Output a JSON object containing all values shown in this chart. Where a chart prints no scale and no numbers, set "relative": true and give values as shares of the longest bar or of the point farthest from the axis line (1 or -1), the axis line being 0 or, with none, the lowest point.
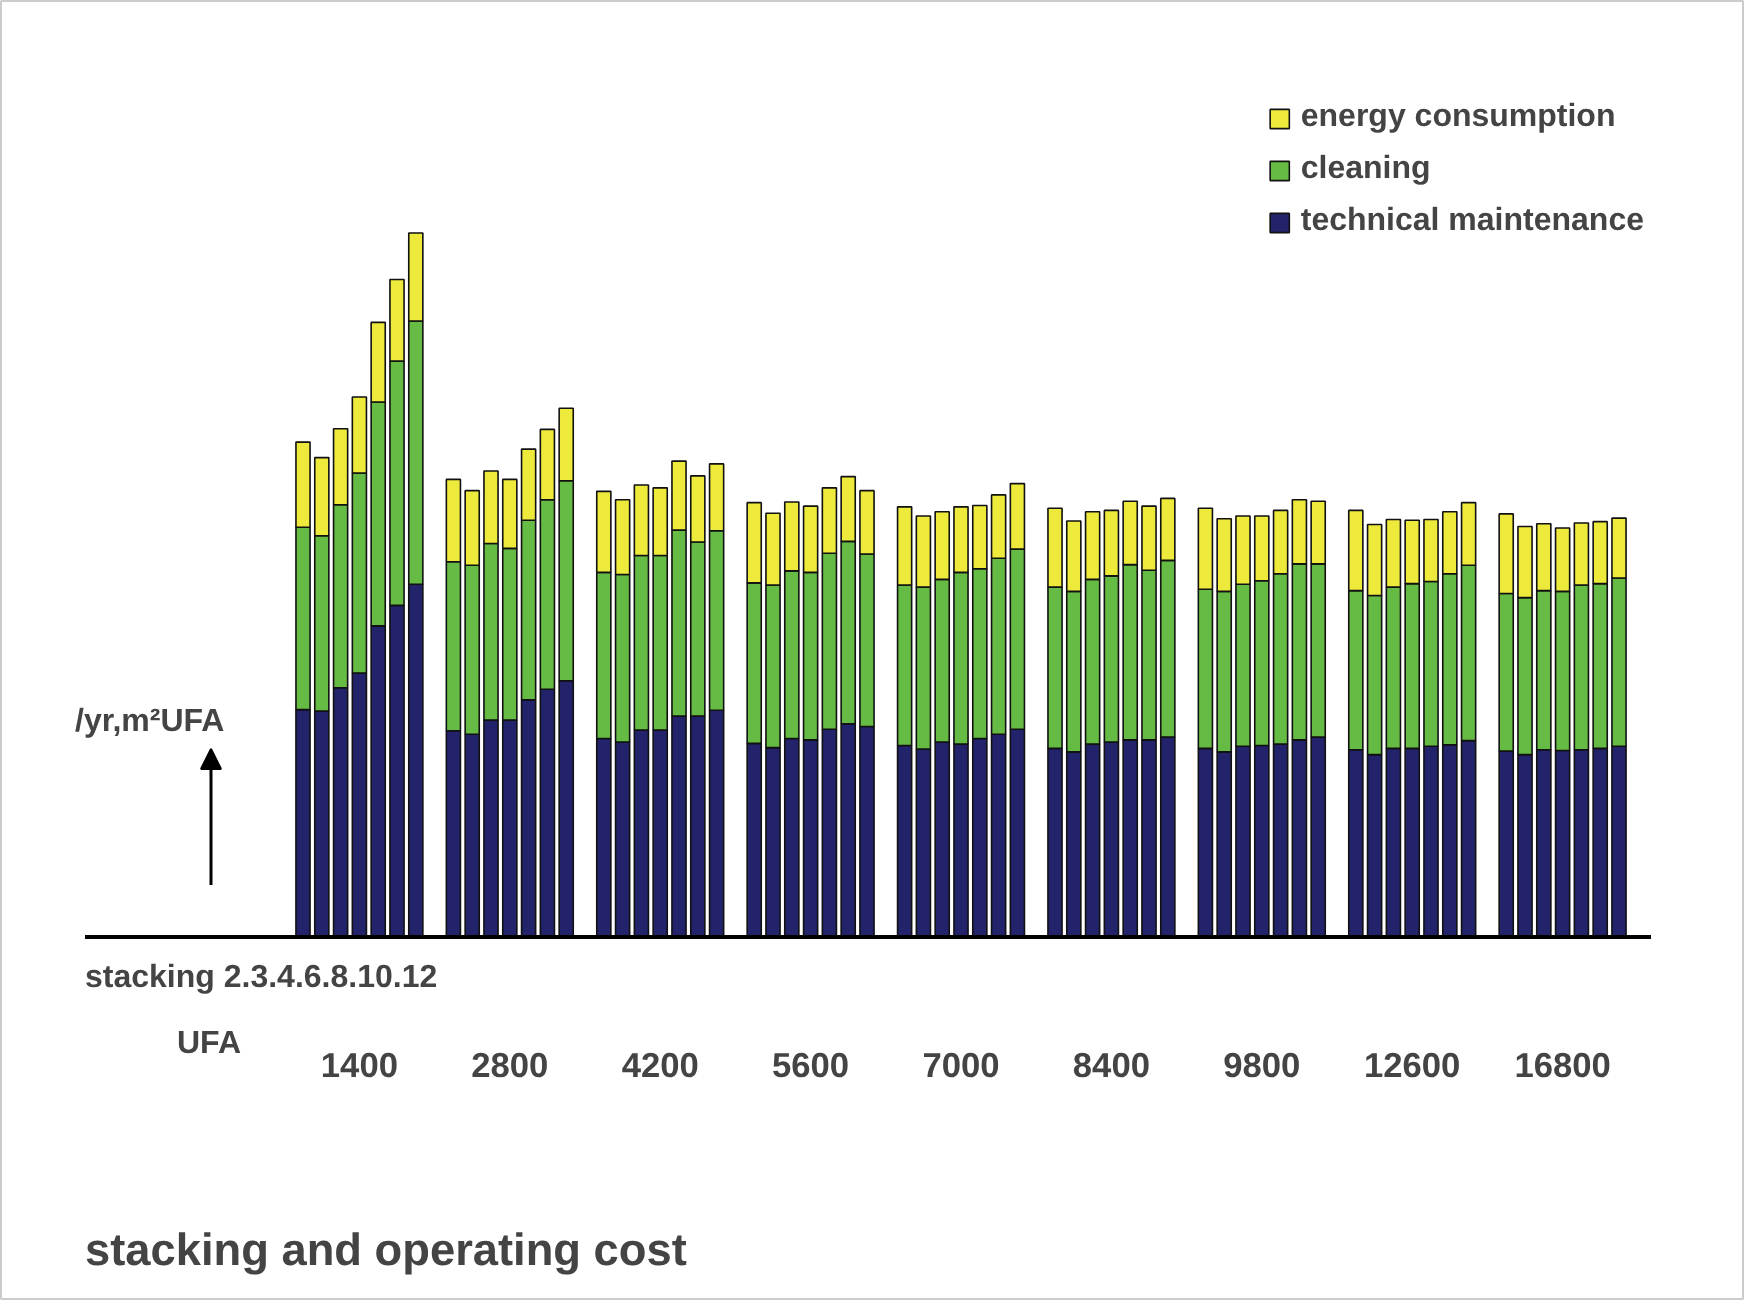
{
  "chart_data": {
    "type": "bar",
    "stacked": true,
    "relative": true,
    "title": "stacking and operating cost",
    "ylabel": "/yr,m²UFA",
    "annotations": [
      "stacking 2.3.4.6.8.10.12",
      "UFA"
    ],
    "legend": "top right",
    "grid": false,
    "categories": [
      null,
      null,
      null,
      "1400",
      null,
      null,
      null,
      null,
      null,
      null,
      null,
      "2800",
      null,
      null,
      null,
      null,
      null,
      null,
      null,
      "4200",
      null,
      null,
      null,
      null,
      null,
      null,
      null,
      "5600",
      null,
      null,
      null,
      null,
      null,
      null,
      null,
      "7000",
      null,
      null,
      null,
      null,
      null,
      null,
      null,
      "8400",
      null,
      null,
      null,
      null,
      null,
      null,
      null,
      "9800",
      null,
      null,
      null,
      null,
      null,
      null,
      null,
      "12600",
      null,
      null,
      null,
      null,
      null,
      null,
      null,
      "16800",
      null,
      null,
      null
    ],
    "series": [
      {
        "name": "technical maintenance",
        "color": "#22236a",
        "values": [
          0.323,
          0.321,
          0.354,
          0.375,
          0.442,
          0.471,
          0.501,
          null,
          0.293,
          0.288,
          0.308,
          0.308,
          0.337,
          0.352,
          0.364,
          null,
          0.282,
          0.277,
          0.294,
          0.294,
          0.314,
          0.314,
          0.322,
          null,
          0.275,
          0.269,
          0.282,
          0.28,
          0.295,
          0.303,
          0.299,
          null,
          0.272,
          0.267,
          0.277,
          0.274,
          0.282,
          0.288,
          0.295,
          null,
          0.268,
          0.263,
          0.274,
          0.277,
          0.28,
          0.28,
          0.284,
          null,
          0.268,
          0.263,
          0.271,
          0.272,
          0.274,
          0.28,
          0.284,
          null,
          0.266,
          0.259,
          0.268,
          0.268,
          0.271,
          0.273,
          0.279,
          null,
          0.264,
          0.259,
          0.266,
          0.265,
          0.266,
          0.268,
          0.271
        ]
      },
      {
        "name": "cleaning",
        "color": "#66bb44",
        "values": [
          0.259,
          0.249,
          0.26,
          0.284,
          0.318,
          0.347,
          0.374,
          null,
          0.24,
          0.24,
          0.251,
          0.244,
          0.255,
          0.269,
          0.284,
          null,
          0.236,
          0.238,
          0.248,
          0.248,
          0.264,
          0.247,
          0.255,
          null,
          0.228,
          0.231,
          0.238,
          0.238,
          0.25,
          0.259,
          0.245,
          null,
          0.228,
          0.23,
          0.231,
          0.244,
          0.241,
          0.25,
          0.256,
          null,
          0.229,
          0.228,
          0.234,
          0.236,
          0.249,
          0.241,
          0.251,
          null,
          0.226,
          0.228,
          0.23,
          0.234,
          0.242,
          0.25,
          0.246,
          null,
          0.226,
          0.226,
          0.229,
          0.234,
          0.234,
          0.243,
          0.249,
          null,
          0.224,
          0.223,
          0.226,
          0.226,
          0.234,
          0.234,
          0.239
        ]
      },
      {
        "name": "energy consumption",
        "color": "#eeea3c",
        "values": [
          0.121,
          0.111,
          0.108,
          0.108,
          0.113,
          0.116,
          0.125,
          null,
          0.117,
          0.106,
          0.103,
          0.098,
          0.101,
          0.1,
          0.103,
          null,
          0.115,
          0.106,
          0.1,
          0.096,
          0.098,
          0.094,
          0.095,
          null,
          0.114,
          0.102,
          0.098,
          0.094,
          0.093,
          0.092,
          0.09,
          null,
          0.111,
          0.101,
          0.096,
          0.093,
          0.09,
          0.09,
          0.093,
          null,
          0.112,
          0.1,
          0.096,
          0.093,
          0.09,
          0.091,
          0.088,
          null,
          0.115,
          0.103,
          0.097,
          0.092,
          0.09,
          0.091,
          0.089,
          null,
          0.114,
          0.101,
          0.096,
          0.09,
          0.088,
          0.088,
          0.089,
          null,
          0.113,
          0.101,
          0.095,
          0.09,
          0.088,
          0.088,
          0.085
        ]
      }
    ]
  }
}
